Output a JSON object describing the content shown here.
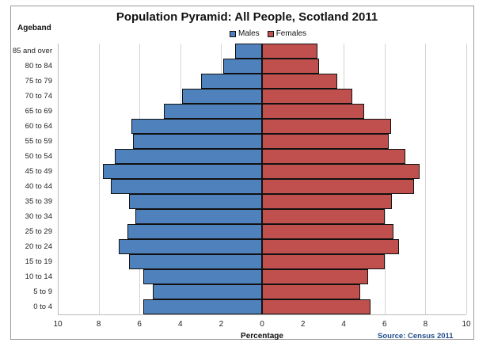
{
  "chart_data": {
    "type": "bar",
    "orientation": "horizontal",
    "subtype": "population-pyramid",
    "title": "Population Pyramid: All People, Scotland 2011",
    "ylabel": "Ageband",
    "xlabel": "Percentage",
    "source": "Source: Census 2011",
    "xlim": [
      -10,
      10
    ],
    "xticks": [
      "10",
      "8",
      "6",
      "4",
      "2",
      "0",
      "2",
      "4",
      "6",
      "8",
      "10"
    ],
    "grid": true,
    "legend_position": "top",
    "categories": [
      "85 and over",
      "80 to 84",
      "75 to 79",
      "70 to 74",
      "65 to 69",
      "60 to 64",
      "55 to 59",
      "50 to 54",
      "45 to 49",
      "40 to 44",
      "35 to 39",
      "30 to 34",
      "25 to 29",
      "20 to 24",
      "15 to 19",
      "10 to 14",
      "5 to 9",
      "0 to 4"
    ],
    "series": [
      {
        "name": "Males",
        "color": "#4f81bd",
        "values": [
          1.3,
          1.9,
          3.0,
          3.9,
          4.8,
          6.4,
          6.3,
          7.2,
          7.8,
          7.4,
          6.5,
          6.2,
          6.6,
          7.0,
          6.5,
          5.8,
          5.35,
          5.8
        ]
      },
      {
        "name": "Females",
        "color": "#c0504d",
        "values": [
          2.7,
          2.8,
          3.7,
          4.4,
          5.0,
          6.3,
          6.2,
          7.0,
          7.7,
          7.45,
          6.35,
          6.0,
          6.45,
          6.7,
          6.0,
          5.2,
          4.8,
          5.3
        ]
      }
    ]
  }
}
